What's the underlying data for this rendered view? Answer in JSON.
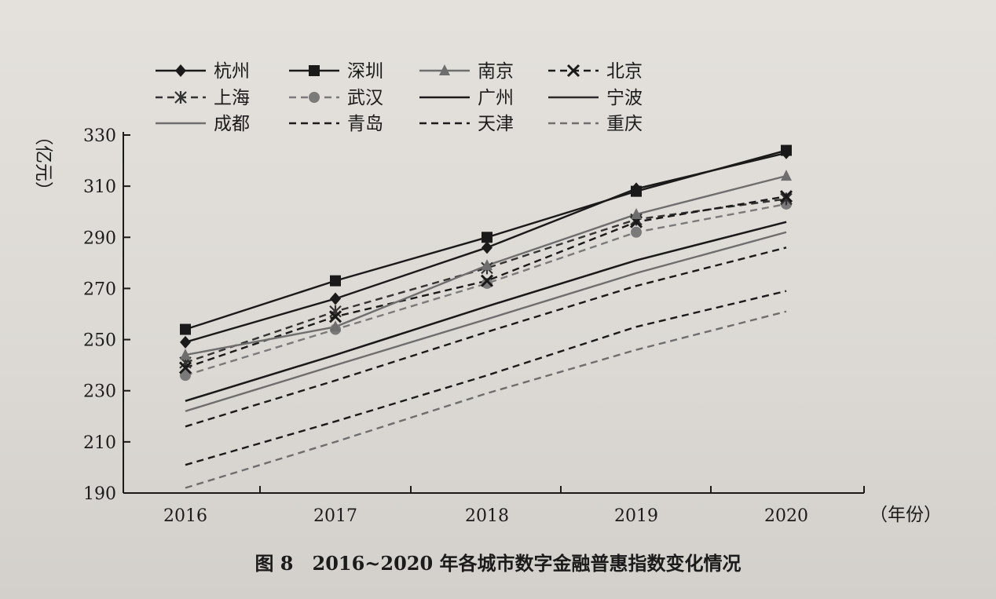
{
  "caption": "图 8　2016~2020 年各城市数字金融普惠指数变化情况",
  "chart_data": {
    "type": "line",
    "ylabel": "（亿元）",
    "xlabel": "（年份）",
    "x": [
      "2016",
      "2017",
      "2018",
      "2019",
      "2020"
    ],
    "ylim": [
      190,
      330
    ],
    "yticks": [
      190,
      210,
      230,
      250,
      270,
      290,
      310,
      330
    ],
    "grid": false,
    "legend": "top",
    "series": [
      {
        "name": "杭州",
        "values": [
          249,
          266,
          286,
          309,
          323
        ],
        "style": "solid",
        "marker": "diamond",
        "color": "#1a1a1a"
      },
      {
        "name": "深圳",
        "values": [
          254,
          273,
          290,
          308,
          324
        ],
        "style": "solid",
        "marker": "square",
        "color": "#1a1a1a"
      },
      {
        "name": "南京",
        "values": [
          244,
          255,
          279,
          299,
          314
        ],
        "style": "solid",
        "marker": "triangle",
        "color": "#6e6e6e"
      },
      {
        "name": "北京",
        "values": [
          239,
          259,
          273,
          296,
          306
        ],
        "style": "dashed",
        "marker": "x",
        "color": "#1a1a1a"
      },
      {
        "name": "上海",
        "values": [
          241,
          261,
          278,
          297,
          305
        ],
        "style": "dashed",
        "marker": "star",
        "color": "#333333"
      },
      {
        "name": "武汉",
        "values": [
          236,
          254,
          272,
          292,
          303
        ],
        "style": "dashed",
        "marker": "circle",
        "color": "#7a7a7a"
      },
      {
        "name": "广州",
        "values": [
          226,
          244,
          263,
          281,
          296
        ],
        "style": "solid",
        "marker": "none",
        "color": "#1a1a1a"
      },
      {
        "name": "宁波",
        "values": [
          226,
          244,
          263,
          281,
          296
        ],
        "style": "solid",
        "marker": "none",
        "color": "#2a2a2a"
      },
      {
        "name": "成都",
        "values": [
          222,
          240,
          258,
          276,
          292
        ],
        "style": "solid",
        "marker": "none",
        "color": "#6e6e6e"
      },
      {
        "name": "青岛",
        "values": [
          216,
          234,
          253,
          271,
          286
        ],
        "style": "dashed",
        "marker": "none",
        "color": "#1a1a1a"
      },
      {
        "name": "天津",
        "values": [
          201,
          218,
          236,
          255,
          269
        ],
        "style": "dashed",
        "marker": "none",
        "color": "#1a1a1a"
      },
      {
        "name": "重庆",
        "values": [
          192,
          210,
          229,
          246,
          261
        ],
        "style": "dashed",
        "marker": "none",
        "color": "#6e6e6e"
      }
    ]
  }
}
